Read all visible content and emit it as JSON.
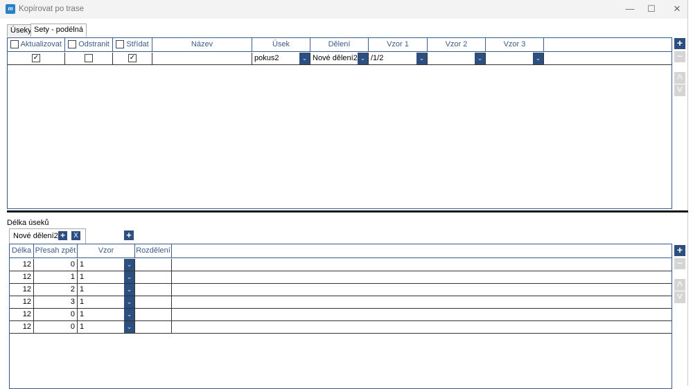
{
  "window": {
    "title": "Kopírovat po trase",
    "icon": "app-logo-icon",
    "minimize": "—",
    "maximize": "☐",
    "close": "✕"
  },
  "tabs": [
    {
      "label": "Úseky"
    },
    {
      "label": "Sety - podélná",
      "active": true
    }
  ],
  "sets_grid": {
    "headers": [
      "Aktualizovat",
      "Odstranit",
      "Střídat",
      "Název",
      "Úsek",
      "Dělení",
      "Vzor 1",
      "Vzor 2",
      "Vzor 3"
    ],
    "header_checkboxes": [
      false,
      false,
      false
    ],
    "rows": [
      {
        "aktualizovat": true,
        "odstranit": false,
        "stridat": true,
        "nazev": "",
        "usek": "pokus2",
        "deleni": "Nové dělení2",
        "vzor1": "/1/2",
        "vzor2": "",
        "vzor3": ""
      }
    ]
  },
  "side_buttons": {
    "add": "+",
    "remove": "−",
    "up": "˄",
    "down": "˅"
  },
  "lengths": {
    "label": "Délka úseků",
    "division_tab": {
      "label": "Nové dělení2",
      "add": "+",
      "remove": "X"
    },
    "add_division": "+",
    "headers": [
      "Délka",
      "Přesah zpět",
      "Vzor",
      "Rozdělení"
    ],
    "rows": [
      {
        "delka": "12",
        "presah": "0",
        "vzor": "1",
        "rozdeleni": ""
      },
      {
        "delka": "12",
        "presah": "1",
        "vzor": "1",
        "rozdeleni": ""
      },
      {
        "delka": "12",
        "presah": "2",
        "vzor": "1",
        "rozdeleni": ""
      },
      {
        "delka": "12",
        "presah": "3",
        "vzor": "1",
        "rozdeleni": ""
      },
      {
        "delka": "12",
        "presah": "0",
        "vzor": "1",
        "rozdeleni": ""
      },
      {
        "delka": "12",
        "presah": "0",
        "vzor": "1",
        "rozdeleni": ""
      }
    ]
  },
  "colors": {
    "accent": "#2d4f7f",
    "header_text": "#3b5a8a"
  }
}
